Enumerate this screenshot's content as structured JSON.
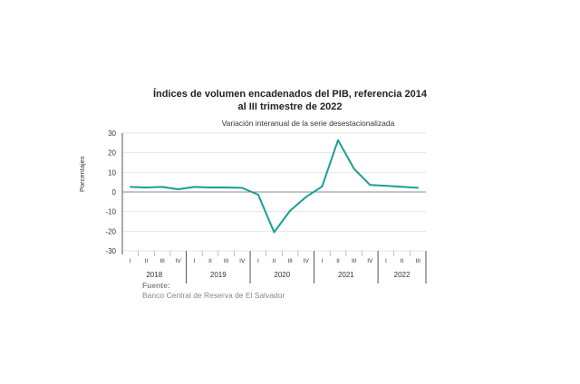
{
  "title_line1": "Índices de volumen encadenados del PIB, referencia 2014",
  "title_line2": "al III trimestre de 2022",
  "subtitle": "Variación interanual de la serie desestacionalizada",
  "source_label": "Fuente:",
  "source_text": "Banco Central de Reserva de El Salvador",
  "colors": {
    "line": "#1a9e94",
    "zero_line": "#888888",
    "grid": "#e6e6e6",
    "axis": "#555555"
  },
  "chart_data": {
    "type": "line",
    "title": "Índices de volumen encadenados del PIB, referencia 2014 al III trimestre de 2022",
    "subtitle": "Variación interanual de la serie desestacionalizada",
    "ylabel": "Porcentajes",
    "xlabel": "",
    "ylim": [
      -30,
      30
    ],
    "yticks": [
      -30,
      -20,
      -10,
      0,
      10,
      20,
      30
    ],
    "grid": true,
    "x_quarters": [
      "I",
      "II",
      "III",
      "IV",
      "I",
      "II",
      "III",
      "IV",
      "I",
      "II",
      "III",
      "IV",
      "I",
      "II",
      "III",
      "IV",
      "I",
      "II",
      "III"
    ],
    "x_years": [
      {
        "label": "2018",
        "quarters": 4
      },
      {
        "label": "2019",
        "quarters": 4
      },
      {
        "label": "2020",
        "quarters": 4
      },
      {
        "label": "2021",
        "quarters": 4
      },
      {
        "label": "2022",
        "quarters": 3
      }
    ],
    "series": [
      {
        "values": [
          2.6,
          2.3,
          2.6,
          1.4,
          2.6,
          2.3,
          2.3,
          2.1,
          -1.4,
          -20.5,
          -9.5,
          -2.5,
          2.8,
          26.4,
          11.8,
          3.6,
          3.2,
          2.7,
          2.1
        ]
      }
    ]
  }
}
